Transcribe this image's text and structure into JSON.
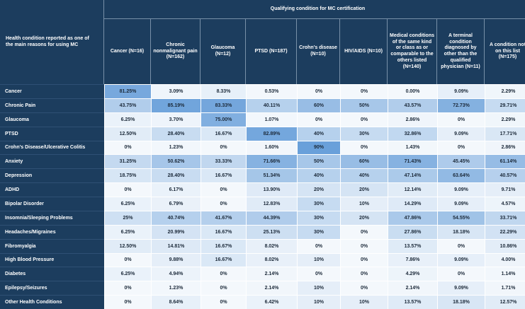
{
  "header": {
    "row_title": "Health condition reported as one of the main reasons for using MC",
    "group_title": "Qualifying condition for MC certification"
  },
  "chart_data": {
    "type": "table",
    "title": "Qualifying condition for MC certification",
    "row_header": "Health condition reported as one of the main reasons for using MC",
    "columns": [
      "Cancer (N=16)",
      "Chronic nonmalignant pain (N=162)",
      "Glaucoma (N=12)",
      "PTSD (N=187)",
      "Crohn's disease (N=10)",
      "HIV/AIDS (N=10)",
      "Medical conditions of the same kind or class as or comparable to the others listed (N=140)",
      "A terminal condition diagnosed by other than the qualified physician (N=11)",
      "A condition not on this list (N=175)"
    ],
    "rows": [
      {
        "label": "Cancer",
        "values": [
          "81.25%",
          "3.09%",
          "8.33%",
          "0.53%",
          "0%",
          "0%",
          "0.00%",
          "9.09%",
          "2.29%"
        ]
      },
      {
        "label": "Chronic Pain",
        "values": [
          "43.75%",
          "85.19%",
          "83.33%",
          "40.11%",
          "60%",
          "50%",
          "43.57%",
          "72.73%",
          "29.71%"
        ]
      },
      {
        "label": "Glaucoma",
        "values": [
          "6.25%",
          "3.70%",
          "75.00%",
          "1.07%",
          "0%",
          "0%",
          "2.86%",
          "0%",
          "2.29%"
        ]
      },
      {
        "label": "PTSD",
        "values": [
          "12.50%",
          "28.40%",
          "16.67%",
          "82.89%",
          "40%",
          "30%",
          "32.86%",
          "9.09%",
          "17.71%"
        ]
      },
      {
        "label": "Crohn's Disease/Ulcerative Colitis",
        "values": [
          "0%",
          "1.23%",
          "0%",
          "1.60%",
          "90%",
          "0%",
          "1.43%",
          "0%",
          "2.86%"
        ]
      },
      {
        "label": "Anxiety",
        "values": [
          "31.25%",
          "50.62%",
          "33.33%",
          "71.66%",
          "50%",
          "60%",
          "71.43%",
          "45.45%",
          "61.14%"
        ]
      },
      {
        "label": "Depression",
        "values": [
          "18.75%",
          "28.40%",
          "16.67%",
          "51.34%",
          "40%",
          "40%",
          "47.14%",
          "63.64%",
          "40.57%"
        ]
      },
      {
        "label": "ADHD",
        "values": [
          "0%",
          "6.17%",
          "0%",
          "13.90%",
          "20%",
          "20%",
          "12.14%",
          "9.09%",
          "9.71%"
        ]
      },
      {
        "label": "Bipolar Disorder",
        "values": [
          "6.25%",
          "6.79%",
          "0%",
          "12.83%",
          "30%",
          "10%",
          "14.29%",
          "9.09%",
          "4.57%"
        ]
      },
      {
        "label": "Insomnia/Sleeping Problems",
        "values": [
          "25%",
          "40.74%",
          "41.67%",
          "44.39%",
          "30%",
          "20%",
          "47.86%",
          "54.55%",
          "33.71%"
        ]
      },
      {
        "label": "Headaches/Migraines",
        "values": [
          "6.25%",
          "20.99%",
          "16.67%",
          "25.13%",
          "30%",
          "0%",
          "27.86%",
          "18.18%",
          "22.29%"
        ]
      },
      {
        "label": "Fibromyalgia",
        "values": [
          "12.50%",
          "14.81%",
          "16.67%",
          "8.02%",
          "0%",
          "0%",
          "13.57%",
          "0%",
          "10.86%"
        ]
      },
      {
        "label": "High Blood Pressure",
        "values": [
          "0%",
          "9.88%",
          "16.67%",
          "8.02%",
          "10%",
          "0%",
          "7.86%",
          "9.09%",
          "4.00%"
        ]
      },
      {
        "label": "Diabetes",
        "values": [
          "6.25%",
          "4.94%",
          "0%",
          "2.14%",
          "0%",
          "0%",
          "4.29%",
          "0%",
          "1.14%"
        ]
      },
      {
        "label": "Epilepsy/Seizures",
        "values": [
          "0%",
          "1.23%",
          "0%",
          "2.14%",
          "10%",
          "0%",
          "2.14%",
          "9.09%",
          "1.71%"
        ]
      },
      {
        "label": "Other Health Conditions",
        "values": [
          "0%",
          "8.64%",
          "0%",
          "6.42%",
          "10%",
          "10%",
          "13.57%",
          "18.18%",
          "12.57%"
        ]
      }
    ],
    "color_scale": {
      "low": "#f4f8fc",
      "high": "#5a96d6"
    }
  }
}
